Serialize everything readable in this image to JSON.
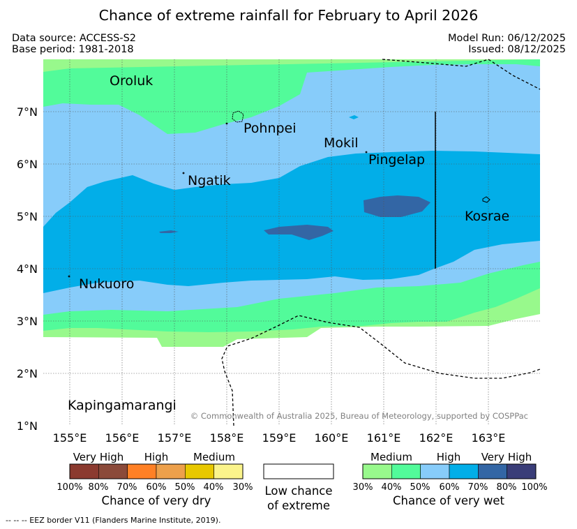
{
  "header": {
    "title": "Chance of extreme rainfall for February to April 2026",
    "data_source": "Data source: ACCESS-S2",
    "base_period": "Base period: 1981-2018",
    "model_run": "Model Run: 06/12/2025",
    "issued": "Issued: 08/12/2025"
  },
  "map": {
    "lat_ticks": [
      "7°N",
      "6°N",
      "5°N",
      "4°N",
      "3°N",
      "2°N",
      "1°N"
    ],
    "lon_ticks": [
      "155°E",
      "156°E",
      "157°E",
      "158°E",
      "159°E",
      "160°E",
      "161°E",
      "162°E",
      "163°E"
    ],
    "places": [
      "Oroluk",
      "Pohnpei",
      "Mokil",
      "Pingelap",
      "Ngatik",
      "Kosrae",
      "Nukuoro",
      "Kapingamarangi"
    ],
    "copyright": "© Commonwealth of Australia 2025, Bureau of Meteorology, supported by COSPPac"
  },
  "legend": {
    "dry": {
      "groups": [
        "Very High",
        "High",
        "Medium"
      ],
      "ticks": [
        "100%",
        "80%",
        "70%",
        "60%",
        "50%",
        "40%",
        "30%"
      ],
      "caption": "Chance of very dry",
      "colors": [
        "#8b3a2f",
        "#8b4a3a",
        "#ff8025",
        "#eda04b",
        "#e8c800",
        "#fbf48b"
      ]
    },
    "low": {
      "line1": "Low chance",
      "line2": "of extreme"
    },
    "wet": {
      "groups": [
        "Medium",
        "High",
        "Very High"
      ],
      "ticks": [
        "30%",
        "40%",
        "50%",
        "60%",
        "70%",
        "80%",
        "100%"
      ],
      "caption": "Chance of very wet",
      "colors": [
        "#98f98c",
        "#52fb9a",
        "#87ccfa",
        "#02aee8",
        "#3366a5",
        "#3a3d78"
      ]
    }
  },
  "footnote": "--  --  -- EEZ border V11 (Flanders Marine Institute, 2019)."
}
